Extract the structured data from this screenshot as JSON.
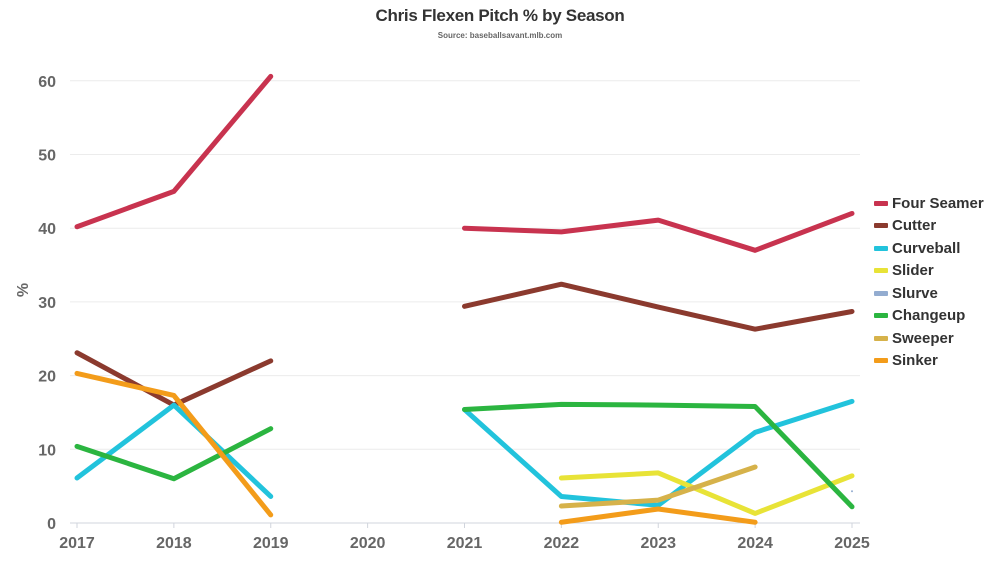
{
  "header": {
    "title": "Chris Flexen Pitch % by Season",
    "subtitle": "Source: baseballsavant.mlb.com"
  },
  "chart_data": {
    "type": "line",
    "title": "Chris Flexen Pitch % by Season",
    "subtitle": "Source: baseballsavant.mlb.com",
    "xlabel": "",
    "ylabel": "%",
    "ylim": [
      0,
      62
    ],
    "yticks": [
      0,
      10,
      20,
      30,
      40,
      50,
      60
    ],
    "grid": true,
    "legend_position": "right",
    "x": [
      "2017",
      "2018",
      "2019",
      "2020",
      "2021",
      "2022",
      "2023",
      "2024",
      "2025"
    ],
    "series": [
      {
        "name": "Four Seamer",
        "color": "#c8334f",
        "values": [
          40.2,
          45.0,
          60.6,
          null,
          40.0,
          39.5,
          41.1,
          37.0,
          42.0
        ]
      },
      {
        "name": "Cutter",
        "color": "#8b3a2e",
        "values": [
          23.1,
          16.0,
          22.0,
          null,
          29.4,
          32.4,
          29.3,
          26.3,
          28.7
        ]
      },
      {
        "name": "Curveball",
        "color": "#22c3dc",
        "values": [
          6.1,
          16.0,
          3.6,
          null,
          15.4,
          3.6,
          2.4,
          12.3,
          16.5
        ]
      },
      {
        "name": "Slider",
        "color": "#e8e337",
        "values": [
          null,
          null,
          null,
          null,
          null,
          6.1,
          6.8,
          1.3,
          6.4
        ]
      },
      {
        "name": "Slurve",
        "color": "#93acd0",
        "values": [
          null,
          null,
          null,
          null,
          null,
          null,
          null,
          null,
          4.3
        ]
      },
      {
        "name": "Changeup",
        "color": "#2bb540",
        "values": [
          10.4,
          6.0,
          12.8,
          null,
          15.4,
          16.1,
          16.0,
          15.8,
          2.2
        ]
      },
      {
        "name": "Sweeper",
        "color": "#d6b24a",
        "values": [
          null,
          null,
          null,
          null,
          null,
          2.3,
          3.1,
          7.6,
          null
        ]
      },
      {
        "name": "Sinker",
        "color": "#f39c1a",
        "values": [
          20.3,
          17.3,
          1.1,
          null,
          null,
          0.1,
          1.9,
          0.1,
          null
        ]
      }
    ]
  }
}
